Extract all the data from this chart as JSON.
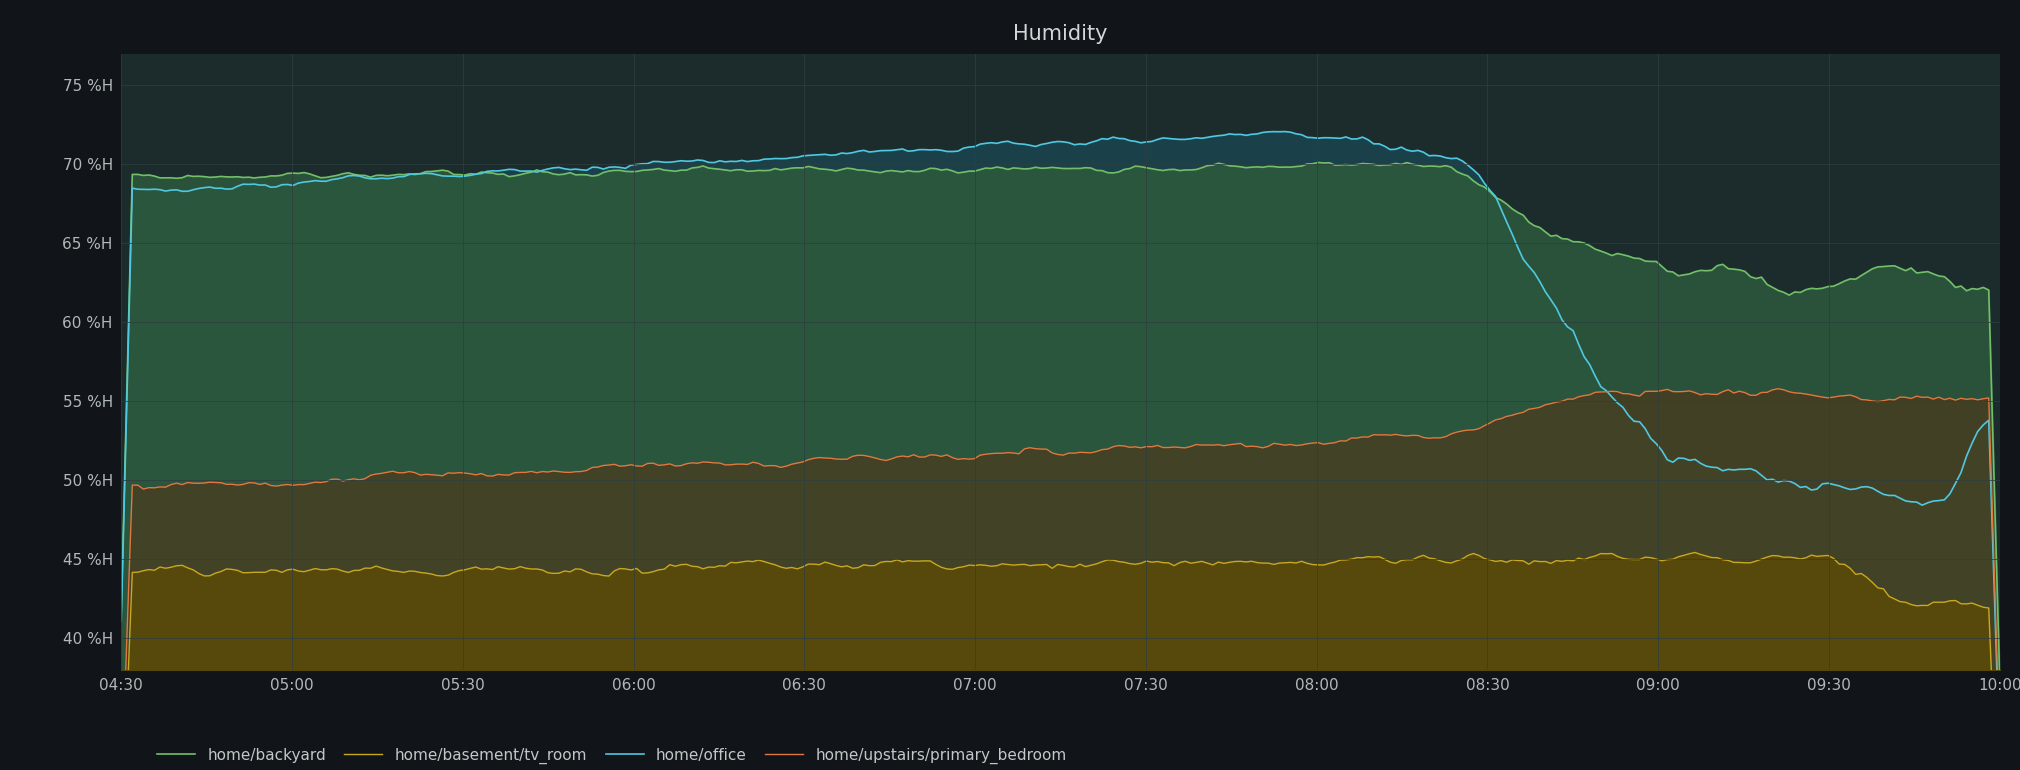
{
  "title": "Humidity",
  "background_color": "#111418",
  "plot_bg_color": "#1c2b2b",
  "grid_color": "#2e3e3e",
  "text_color": "#b0b8b8",
  "title_color": "#d0d8d8",
  "ylim": [
    38,
    77
  ],
  "yticks": [
    40,
    45,
    50,
    55,
    60,
    65,
    70,
    75
  ],
  "xtick_labels": [
    "04:30",
    "05:00",
    "05:30",
    "06:00",
    "06:30",
    "07:00",
    "07:30",
    "08:00",
    "08:30",
    "09:00",
    "09:30",
    "10:00"
  ],
  "series": {
    "backyard": {
      "color": "#73bf69",
      "label": "home/backyard",
      "fill_color": "#2d5a3d",
      "fill_alpha": 0.85
    },
    "basement": {
      "color": "#c8a820",
      "label": "home/basement/tv_room",
      "fill_color": "#5a4a08",
      "fill_alpha": 0.9
    },
    "office": {
      "color": "#4fc8e0",
      "label": "home/office",
      "fill_color": "#1a5060",
      "fill_alpha": 0.6
    },
    "bedroom": {
      "color": "#e07840",
      "label": "home/upstairs/primary_bedroom",
      "fill_color": "#5a3010",
      "fill_alpha": 0.5
    }
  },
  "legend_bg": "#111418",
  "legend_text_color": "#c0c8c8"
}
